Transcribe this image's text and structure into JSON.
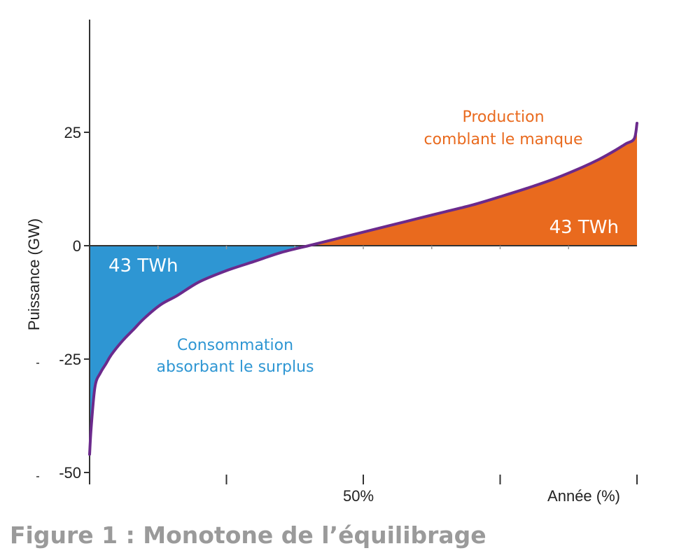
{
  "chart_data": {
    "type": "area",
    "ylabel": "Puissance (GW)",
    "xlabel": "Année (%)",
    "x_tick_label": "50%",
    "y_ticks": [
      "25",
      "0",
      "-25",
      "-50"
    ],
    "y_tick_values": [
      25,
      0,
      -25,
      -50
    ],
    "ylim": [
      -50,
      50
    ],
    "xlim": [
      0,
      100
    ],
    "x_ticks": [
      0,
      25,
      50,
      75,
      100
    ],
    "series": [
      {
        "x": [
          0,
          0.3,
          1,
          2,
          3,
          4,
          6,
          8,
          10,
          13,
          16,
          20,
          25,
          30,
          35,
          40,
          45,
          50,
          55,
          60,
          65,
          70,
          75,
          80,
          85,
          90,
          93,
          96,
          98,
          99.5,
          100
        ],
        "y": [
          -46,
          -40,
          -31,
          -28,
          -26,
          -24,
          -21,
          -18.5,
          -16,
          -13,
          -11,
          -8,
          -5.5,
          -3.5,
          -1.5,
          0,
          1.5,
          3,
          4.5,
          6,
          7.5,
          9,
          10.8,
          12.7,
          14.8,
          17.3,
          19,
          21,
          22.5,
          23.6,
          27
        ]
      }
    ],
    "colors": {
      "deficit": "#2e96d3",
      "surplus": "#e96a1e",
      "curve": "#6b2a8c",
      "axis": "#333333"
    },
    "annotations": {
      "left_energy": "43 TWh",
      "right_energy": "43 TWh",
      "consumption_line1": "Consommation",
      "consumption_line2": "absorbant le surplus",
      "production_line1": "Production",
      "production_line2": "comblant le manque"
    }
  },
  "caption": "Figure 1 : Monotone de l’équilibrage"
}
